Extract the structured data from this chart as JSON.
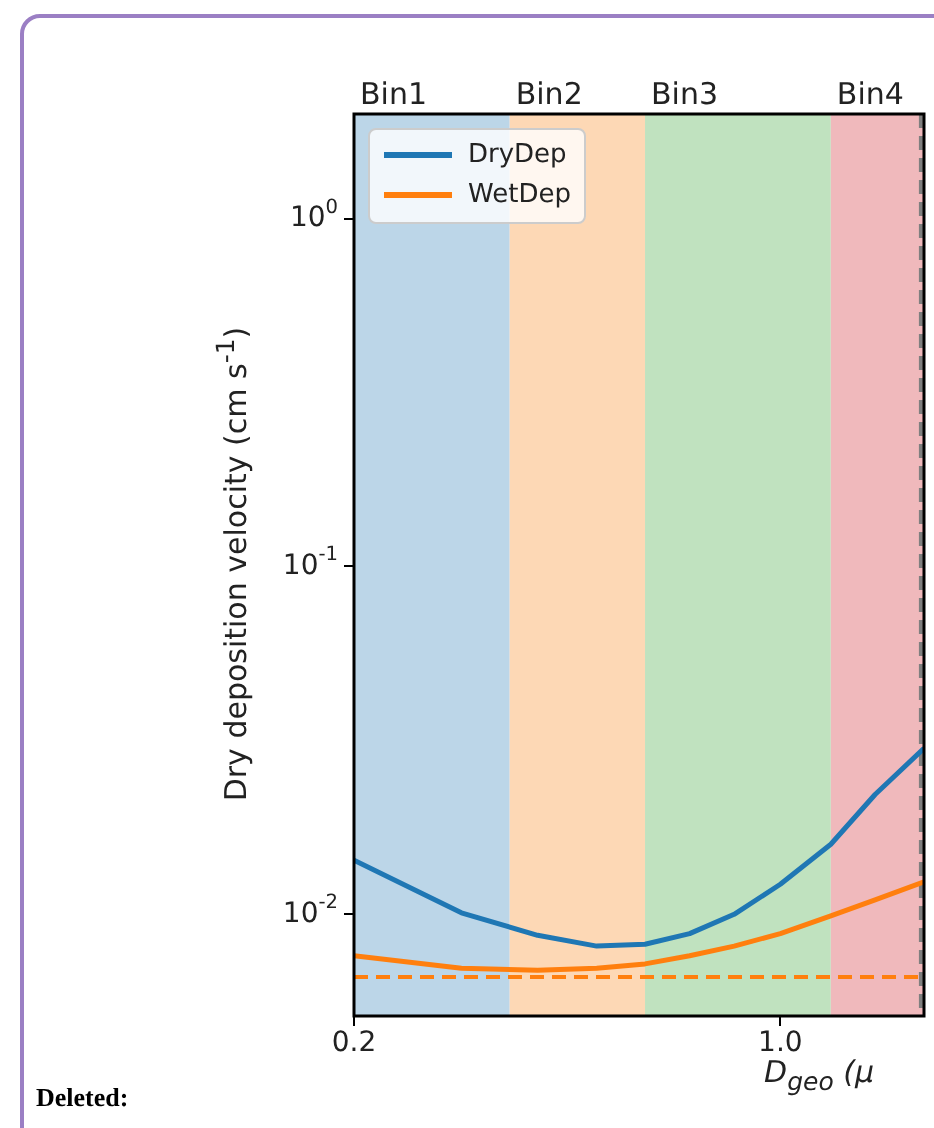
{
  "chart_data": {
    "type": "line",
    "xlabel": "D$_{geo}$ (μ",
    "ylabel": "Dry deposition velocity (cm s$^{-1}$)",
    "annotations": [
      "Deleted:"
    ],
    "x": [
      0.2,
      0.3,
      0.4,
      0.5,
      0.6,
      0.71,
      0.84,
      1.0,
      1.21,
      1.43,
      1.72
    ],
    "series": [
      {
        "name": "DryDep",
        "color": "#1f77b4",
        "values": [
          0.0143,
          0.0101,
          0.0087,
          0.0081,
          0.0082,
          0.0088,
          0.01,
          0.0122,
          0.0159,
          0.0221,
          0.03
        ]
      },
      {
        "name": "WetDep",
        "color": "#ff7f0e",
        "values": [
          0.0076,
          0.007,
          0.0069,
          0.007,
          0.0072,
          0.0076,
          0.0081,
          0.0088,
          0.0099,
          0.011,
          0.0124
        ]
      }
    ],
    "log": "xy",
    "xlim": [
      0.2,
      1.72
    ],
    "ylim": [
      0.0051,
      2.0
    ],
    "xticks": [
      0.2,
      {
        "value": 1,
        "label": "1.0"
      }
    ],
    "yticks": [
      {
        "value": 0.01,
        "label": "10$^{-2}$"
      },
      {
        "value": 0.1,
        "label": "10$^{-1}$"
      },
      {
        "value": 1,
        "label": "10$^{0}$"
      }
    ],
    "bands": [
      {
        "axis": "x",
        "from": 0.2,
        "to": 0.36,
        "label": "Bin1",
        "color": "#bcd6e8"
      },
      {
        "axis": "x",
        "from": 0.36,
        "to": 0.6,
        "label": "Bin2",
        "color": "#fdd8b5"
      },
      {
        "axis": "x",
        "from": 0.6,
        "to": 1.21,
        "label": "Bin3",
        "color": "#c0e2bf"
      },
      {
        "axis": "x",
        "from": 1.21,
        "to": 1.72,
        "label": "Bin4",
        "color": "#f0b9bc"
      }
    ],
    "ref_lines": [
      {
        "axis": "y",
        "value": 0.0066,
        "color": "#ff7f0e",
        "line_style": "dashed"
      },
      {
        "axis": "x",
        "value": 1.7,
        "color": "#7f7f7f",
        "line_style": "dashed"
      }
    ],
    "legend": "top left",
    "grid": false
  }
}
